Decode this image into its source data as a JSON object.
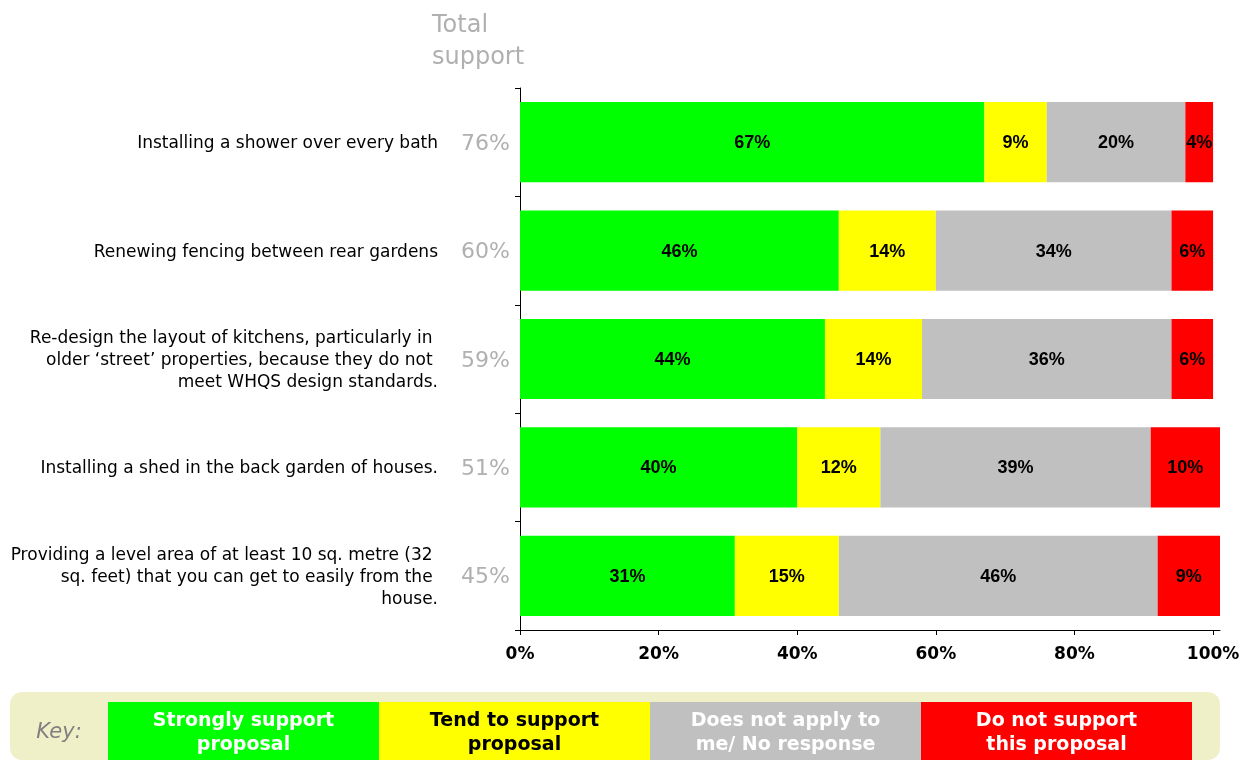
{
  "chart_data": {
    "type": "bar",
    "orientation": "horizontal",
    "stacked": true,
    "categories": [
      "Installing a shower over every bath",
      "Renewing fencing between rear gardens",
      "Re-design the layout of kitchens, particularly in older ‘street’ properties, because they do not meet WHQS design standards.",
      "Installing a shed in the back garden of houses.",
      "Providing a level area of at least 10 sq. metre (32 sq. feet) that you can get to easily from the house."
    ],
    "series": [
      {
        "name": "Strongly support proposal",
        "color": "#00ff00",
        "values": [
          67,
          46,
          44,
          40,
          31
        ],
        "value_labels": [
          "67%",
          "46%",
          "44%",
          "40%",
          "31%"
        ]
      },
      {
        "name": "Tend to support proposal",
        "color": "#ffff00",
        "values": [
          9,
          14,
          14,
          12,
          15
        ],
        "value_labels": [
          "9%",
          "14%",
          "14%",
          "12%",
          "15%"
        ]
      },
      {
        "name": "Does not apply to me/ No response",
        "color": "#c0c0c0",
        "values": [
          20,
          34,
          36,
          39,
          46
        ],
        "value_labels": [
          "20%",
          "34%",
          "36%",
          "39%",
          "46%"
        ]
      },
      {
        "name": "Do not support this proposal",
        "color": "#ff0000",
        "values": [
          4,
          6,
          6,
          10,
          9
        ],
        "value_labels": [
          "4%",
          "6%",
          "6%",
          "10%",
          "9%"
        ]
      }
    ],
    "annotations": [
      "Total support",
      "76%",
      "60%",
      "59%",
      "51%",
      "45%"
    ],
    "xlim": [
      0,
      101
    ],
    "xticks": [
      {
        "value": 0,
        "label": "0%"
      },
      {
        "value": 20,
        "label": "20%"
      },
      {
        "value": 40,
        "label": "40%"
      },
      {
        "value": 60,
        "label": "60%"
      },
      {
        "value": 80,
        "label": "80%"
      },
      {
        "value": 100,
        "label": "100%"
      }
    ],
    "grid": false,
    "legend": "bottom",
    "legend_title": "Key:"
  }
}
